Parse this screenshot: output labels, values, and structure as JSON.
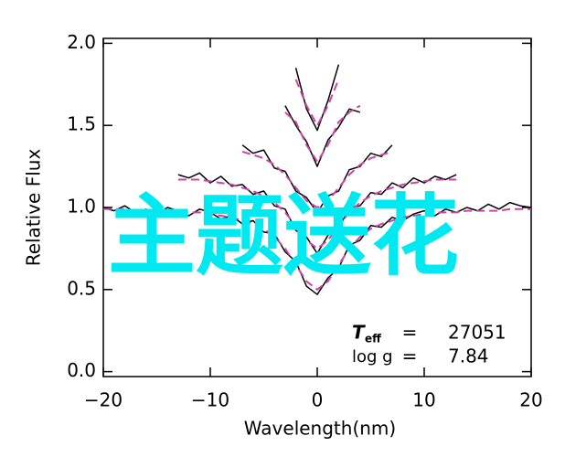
{
  "chart_data": {
    "type": "line",
    "xlabel": "Wavelength(nm)",
    "ylabel": "Relative Flux",
    "xlim": [
      -20,
      20
    ],
    "xticks": [
      {
        "value": -20,
        "label": "−20"
      },
      {
        "value": -10,
        "label": "−10"
      },
      0,
      10,
      20
    ],
    "ylim": [
      -0.03,
      2.03
    ],
    "yticks": [
      {
        "value": 0,
        "label": "0.0"
      },
      0.5,
      {
        "value": 1,
        "label": "1.0"
      },
      1.5,
      {
        "value": 2,
        "label": "2.0"
      }
    ],
    "series": [
      {
        "color": "#000000",
        "style": "solid",
        "x": [
          -20,
          -19,
          -18,
          -17,
          -16,
          -15,
          -14,
          -13,
          -12,
          -11,
          -10,
          -9,
          -8,
          -7,
          -6,
          -5,
          -4,
          -3,
          -2,
          -1,
          0,
          1,
          2,
          3,
          4,
          5,
          6,
          7,
          8,
          9,
          10,
          11,
          12,
          13,
          14,
          15,
          16,
          17,
          18,
          19,
          20
        ],
        "values": [
          1.0,
          0.98,
          1.01,
          0.97,
          0.99,
          0.96,
          1.0,
          0.98,
          0.95,
          0.99,
          0.97,
          0.93,
          0.95,
          0.9,
          0.92,
          0.85,
          0.84,
          0.73,
          0.67,
          0.52,
          0.47,
          0.57,
          0.63,
          0.77,
          0.8,
          0.89,
          0.88,
          0.94,
          0.92,
          0.96,
          0.98,
          0.95,
          0.99,
          0.97,
          1.0,
          0.98,
          1.02,
          0.99,
          1.03,
          1.01,
          1.0
        ]
      },
      {
        "color": "#cc44aa",
        "style": "dashed",
        "x": [
          -20,
          -19,
          -18,
          -17,
          -16,
          -15,
          -14,
          -13,
          -12,
          -11,
          -10,
          -9,
          -8,
          -7,
          -6,
          -5,
          -4,
          -3,
          -2,
          -1,
          0,
          1,
          2,
          3,
          4,
          5,
          6,
          7,
          8,
          9,
          10,
          11,
          12,
          13,
          14,
          15,
          16,
          17,
          18,
          19,
          20
        ],
        "values": [
          0.99,
          0.99,
          0.99,
          0.98,
          0.98,
          0.98,
          0.98,
          0.97,
          0.97,
          0.97,
          0.96,
          0.95,
          0.94,
          0.92,
          0.9,
          0.87,
          0.82,
          0.75,
          0.65,
          0.55,
          0.5,
          0.55,
          0.65,
          0.75,
          0.82,
          0.87,
          0.9,
          0.92,
          0.94,
          0.95,
          0.96,
          0.97,
          0.97,
          0.97,
          0.98,
          0.98,
          0.98,
          0.98,
          0.99,
          0.99,
          0.99
        ]
      },
      {
        "color": "#000000",
        "style": "solid",
        "x": [
          -13,
          -12,
          -11,
          -10,
          -9,
          -8,
          -7,
          -6,
          -5,
          -4,
          -3,
          -2,
          -1,
          0,
          1,
          2,
          3,
          4,
          5,
          6,
          7,
          8,
          9,
          10,
          11,
          12,
          13
        ],
        "values": [
          1.2,
          1.18,
          1.21,
          1.15,
          1.19,
          1.13,
          1.14,
          1.08,
          1.1,
          1.01,
          0.99,
          0.86,
          0.82,
          0.72,
          0.83,
          0.87,
          1.0,
          1.01,
          1.09,
          1.08,
          1.15,
          1.12,
          1.18,
          1.15,
          1.19,
          1.17,
          1.2
        ]
      },
      {
        "color": "#cc44aa",
        "style": "dashed",
        "x": [
          -13,
          -12,
          -11,
          -10,
          -9,
          -8,
          -7,
          -6,
          -5,
          -4,
          -3,
          -2,
          -1,
          0,
          1,
          2,
          3,
          4,
          5,
          6,
          7,
          8,
          9,
          10,
          11,
          12,
          13
        ],
        "values": [
          1.17,
          1.17,
          1.17,
          1.16,
          1.15,
          1.14,
          1.12,
          1.1,
          1.07,
          1.03,
          0.97,
          0.89,
          0.8,
          0.75,
          0.8,
          0.89,
          0.97,
          1.03,
          1.07,
          1.1,
          1.12,
          1.14,
          1.15,
          1.16,
          1.17,
          1.17,
          1.17
        ]
      },
      {
        "color": "#000000",
        "style": "solid",
        "x": [
          -7,
          -6,
          -5,
          -4,
          -3,
          -2,
          -1,
          0,
          1,
          2,
          3,
          4,
          5,
          6,
          7
        ],
        "values": [
          1.38,
          1.33,
          1.35,
          1.24,
          1.22,
          1.1,
          1.06,
          0.97,
          1.07,
          1.1,
          1.23,
          1.25,
          1.33,
          1.31,
          1.38
        ]
      },
      {
        "color": "#cc44aa",
        "style": "dashed",
        "x": [
          -7,
          -6,
          -5,
          -4,
          -3,
          -2,
          -1,
          0,
          1,
          2,
          3,
          4,
          5,
          6,
          7
        ],
        "values": [
          1.34,
          1.32,
          1.3,
          1.26,
          1.2,
          1.12,
          1.04,
          1.0,
          1.04,
          1.12,
          1.2,
          1.26,
          1.3,
          1.32,
          1.34
        ]
      },
      {
        "color": "#000000",
        "style": "solid",
        "x": [
          -3,
          -2,
          -1,
          0,
          1,
          2,
          3,
          4
        ],
        "values": [
          1.62,
          1.5,
          1.4,
          1.25,
          1.41,
          1.49,
          1.6,
          1.58
        ]
      },
      {
        "color": "#cc44aa",
        "style": "dashed",
        "x": [
          -3,
          -2,
          -1,
          0,
          1,
          2,
          3,
          4
        ],
        "values": [
          1.58,
          1.52,
          1.38,
          1.28,
          1.38,
          1.52,
          1.58,
          1.62
        ]
      },
      {
        "color": "#000000",
        "style": "solid",
        "x": [
          -2,
          -1,
          0,
          1,
          2
        ],
        "values": [
          1.85,
          1.6,
          1.47,
          1.65,
          1.87
        ]
      },
      {
        "color": "#cc44aa",
        "style": "dashed",
        "x": [
          -2,
          -1,
          0,
          1,
          2
        ],
        "values": [
          1.78,
          1.62,
          1.5,
          1.62,
          1.78
        ]
      }
    ],
    "params": [
      {
        "name": "T",
        "subscript": "eff",
        "eq": "=",
        "value": 27051
      },
      {
        "name": "log g",
        "eq": "=",
        "value": 7.84
      }
    ],
    "watermark": "主题送花"
  }
}
